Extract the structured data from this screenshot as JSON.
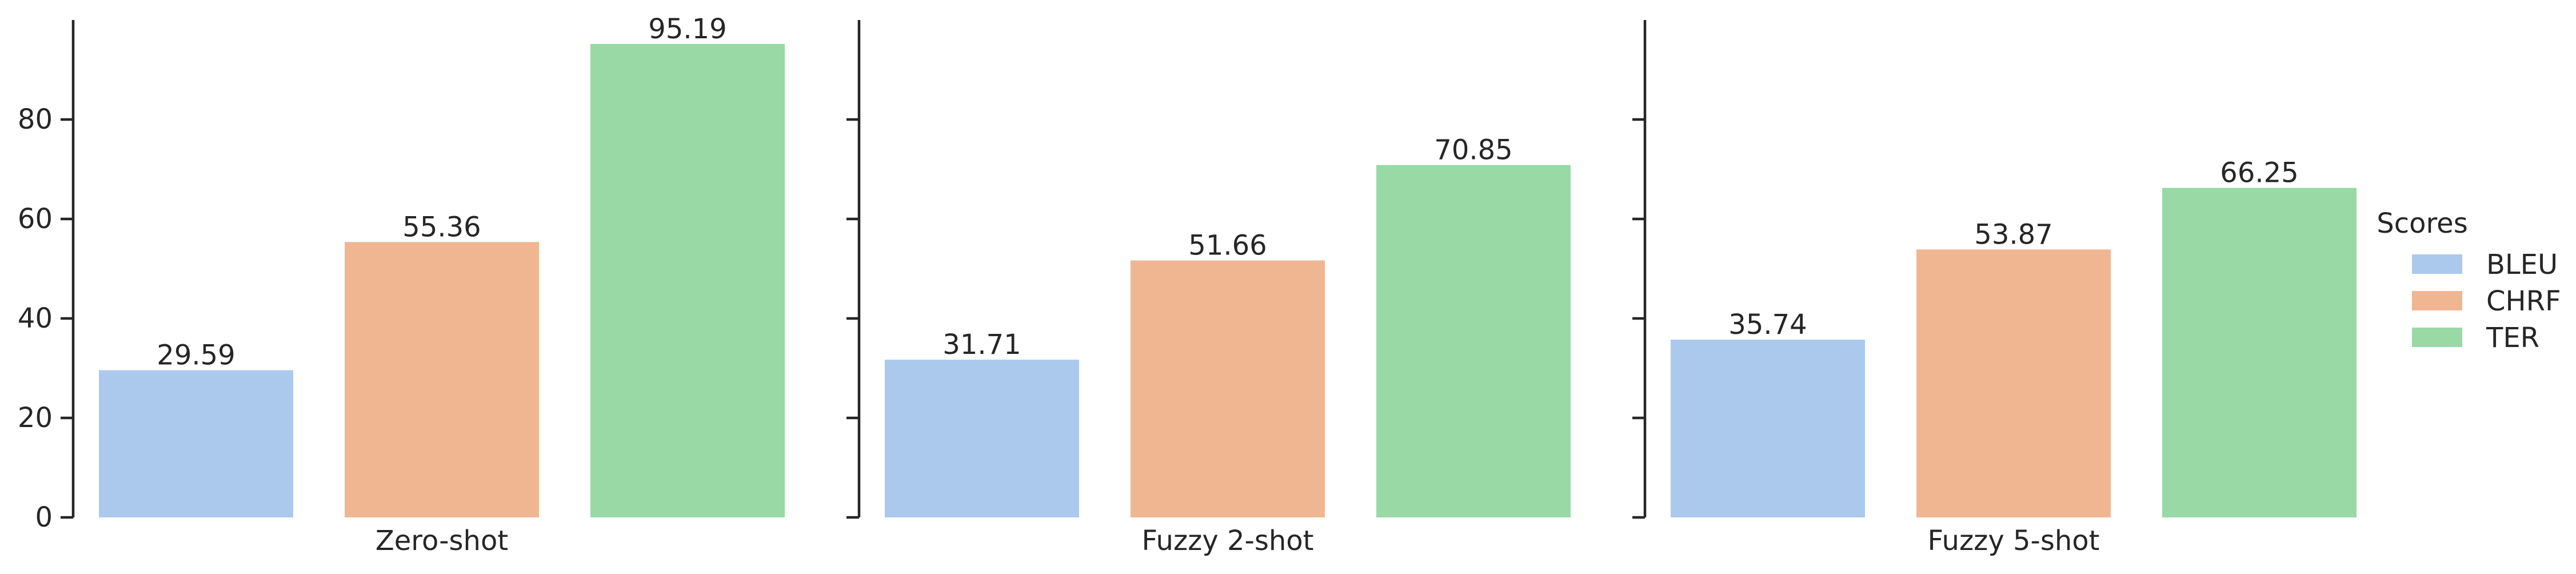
{
  "chart_data": {
    "type": "bar",
    "layout": "faceted",
    "facets": [
      {
        "title": "Zero-shot",
        "categories": [
          "BLEU",
          "CHRF",
          "TER"
        ],
        "values": [
          29.59,
          55.36,
          95.19
        ],
        "value_labels": [
          "29.59",
          "55.36",
          "95.19"
        ]
      },
      {
        "title": "Fuzzy 2-shot",
        "categories": [
          "BLEU",
          "CHRF",
          "TER"
        ],
        "values": [
          31.71,
          51.66,
          70.85
        ],
        "value_labels": [
          "31.71",
          "51.66",
          "70.85"
        ]
      },
      {
        "title": "Fuzzy 5-shot",
        "categories": [
          "BLEU",
          "CHRF",
          "TER"
        ],
        "values": [
          35.74,
          53.87,
          66.25
        ],
        "value_labels": [
          "35.74",
          "53.87",
          "66.25"
        ]
      }
    ],
    "ylim": [
      0,
      100
    ],
    "yticks": [
      0,
      20,
      40,
      60,
      80
    ],
    "ytick_labels": [
      "0",
      "20",
      "40",
      "60",
      "80"
    ],
    "grid": false,
    "legend": {
      "title": "Scores",
      "placement": "right",
      "entries": [
        {
          "label": "BLEU",
          "color": "#abc9ed"
        },
        {
          "label": "CHRF",
          "color": "#f0b692"
        },
        {
          "label": "TER",
          "color": "#98d9a6"
        }
      ]
    },
    "colors": {
      "BLEU": "#abc9ed",
      "CHRF": "#f0b692",
      "TER": "#98d9a6",
      "axis": "#262626",
      "text": "#262626"
    }
  }
}
